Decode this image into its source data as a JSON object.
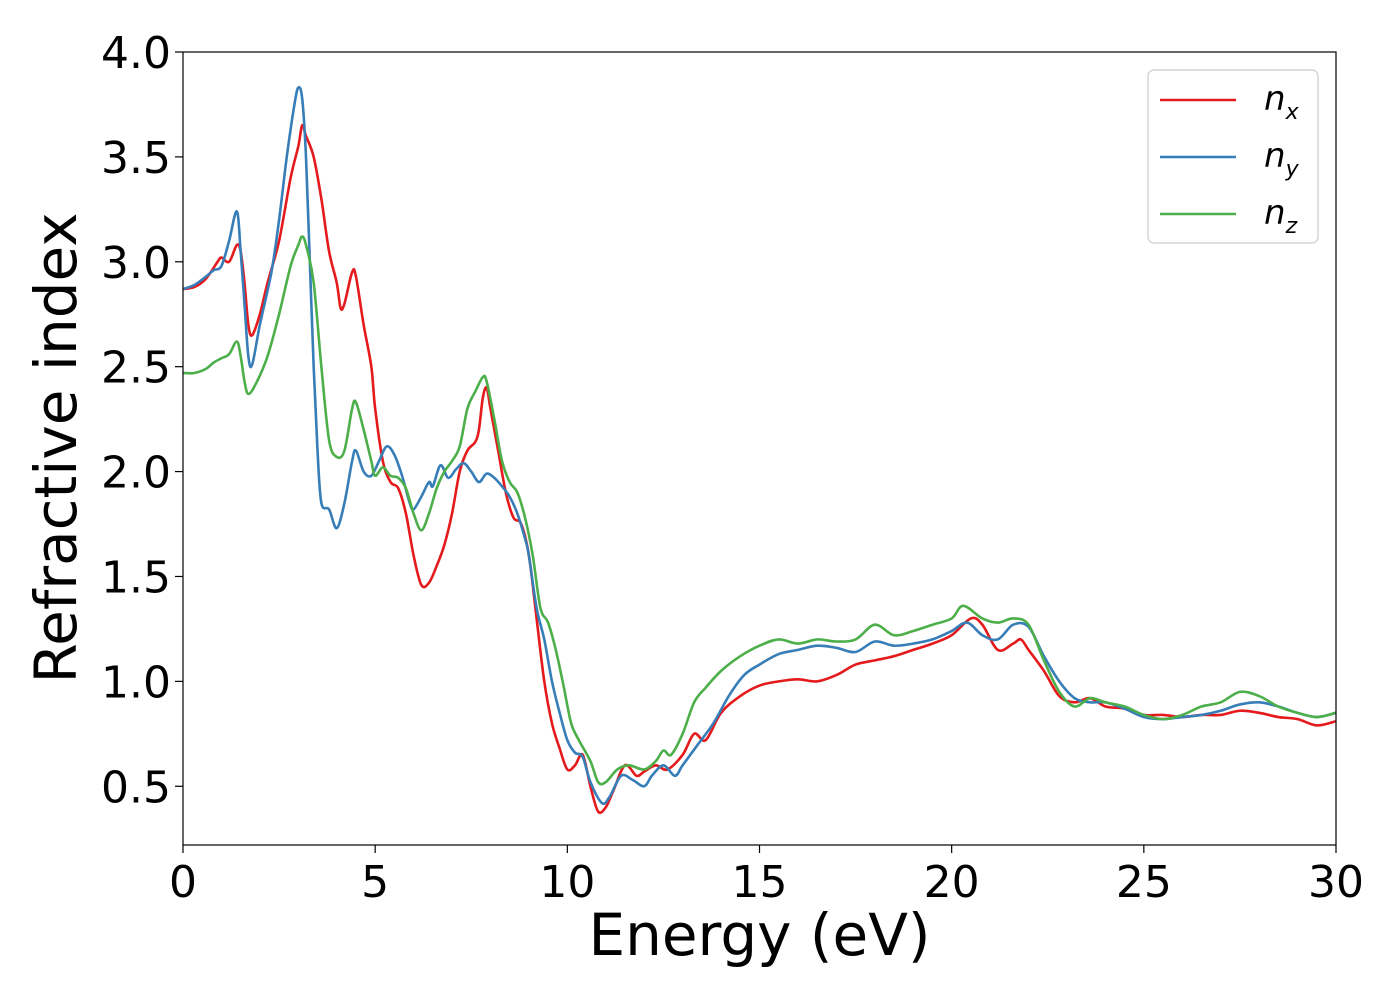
{
  "chart_data": {
    "type": "line",
    "title": "",
    "xlabel": "Energy (eV)",
    "ylabel": "Refractive index",
    "xlim": [
      0,
      30
    ],
    "ylim": [
      0.22,
      4.0
    ],
    "xticks": [
      0,
      5,
      10,
      15,
      20,
      25,
      30
    ],
    "xtick_labels": [
      "0",
      "5",
      "10",
      "15",
      "20",
      "25",
      "30"
    ],
    "yticks": [
      0.5,
      1.0,
      1.5,
      2.0,
      2.5,
      3.0,
      3.5,
      4.0
    ],
    "ytick_labels": [
      "0.5",
      "1.0",
      "1.5",
      "2.0",
      "2.5",
      "3.0",
      "3.5",
      "4.0"
    ],
    "grid": false,
    "legend_position": "top-right",
    "series": [
      {
        "name": "n_x",
        "legend_base": "n",
        "legend_sub": "x",
        "color": "#e41a1c",
        "points": [
          [
            0,
            2.87
          ],
          [
            0.3,
            2.88
          ],
          [
            0.6,
            2.92
          ],
          [
            0.9,
            3.0
          ],
          [
            1.0,
            3.02
          ],
          [
            1.2,
            3.0
          ],
          [
            1.4,
            3.08
          ],
          [
            1.5,
            3.05
          ],
          [
            1.6,
            2.9
          ],
          [
            1.7,
            2.7
          ],
          [
            1.8,
            2.65
          ],
          [
            2.0,
            2.75
          ],
          [
            2.2,
            2.9
          ],
          [
            2.5,
            3.1
          ],
          [
            2.8,
            3.4
          ],
          [
            3.0,
            3.55
          ],
          [
            3.1,
            3.65
          ],
          [
            3.2,
            3.6
          ],
          [
            3.4,
            3.5
          ],
          [
            3.6,
            3.3
          ],
          [
            3.8,
            3.05
          ],
          [
            4.0,
            2.9
          ],
          [
            4.1,
            2.78
          ],
          [
            4.2,
            2.8
          ],
          [
            4.4,
            2.95
          ],
          [
            4.5,
            2.93
          ],
          [
            4.7,
            2.7
          ],
          [
            4.9,
            2.5
          ],
          [
            5.0,
            2.3
          ],
          [
            5.2,
            2.05
          ],
          [
            5.4,
            1.95
          ],
          [
            5.6,
            1.92
          ],
          [
            5.8,
            1.8
          ],
          [
            6.0,
            1.6
          ],
          [
            6.2,
            1.46
          ],
          [
            6.4,
            1.47
          ],
          [
            6.6,
            1.55
          ],
          [
            6.8,
            1.65
          ],
          [
            7.0,
            1.8
          ],
          [
            7.2,
            2.0
          ],
          [
            7.4,
            2.1
          ],
          [
            7.6,
            2.14
          ],
          [
            7.7,
            2.2
          ],
          [
            7.8,
            2.35
          ],
          [
            7.9,
            2.4
          ],
          [
            8.0,
            2.3
          ],
          [
            8.2,
            2.1
          ],
          [
            8.4,
            1.9
          ],
          [
            8.6,
            1.78
          ],
          [
            8.8,
            1.75
          ],
          [
            9.0,
            1.6
          ],
          [
            9.2,
            1.3
          ],
          [
            9.4,
            1.0
          ],
          [
            9.6,
            0.8
          ],
          [
            9.8,
            0.68
          ],
          [
            10.0,
            0.58
          ],
          [
            10.2,
            0.6
          ],
          [
            10.4,
            0.65
          ],
          [
            10.6,
            0.5
          ],
          [
            10.8,
            0.38
          ],
          [
            11.0,
            0.4
          ],
          [
            11.2,
            0.48
          ],
          [
            11.5,
            0.6
          ],
          [
            11.8,
            0.55
          ],
          [
            12.0,
            0.57
          ],
          [
            12.3,
            0.6
          ],
          [
            12.6,
            0.58
          ],
          [
            13.0,
            0.65
          ],
          [
            13.3,
            0.75
          ],
          [
            13.6,
            0.72
          ],
          [
            14.0,
            0.85
          ],
          [
            14.5,
            0.93
          ],
          [
            15.0,
            0.98
          ],
          [
            15.5,
            1.0
          ],
          [
            16.0,
            1.01
          ],
          [
            16.5,
            1.0
          ],
          [
            17.0,
            1.03
          ],
          [
            17.5,
            1.08
          ],
          [
            18.0,
            1.1
          ],
          [
            18.5,
            1.12
          ],
          [
            19.0,
            1.15
          ],
          [
            19.5,
            1.18
          ],
          [
            20.0,
            1.22
          ],
          [
            20.5,
            1.3
          ],
          [
            20.8,
            1.27
          ],
          [
            21.2,
            1.15
          ],
          [
            21.6,
            1.18
          ],
          [
            21.8,
            1.2
          ],
          [
            22.0,
            1.15
          ],
          [
            22.4,
            1.05
          ],
          [
            22.8,
            0.93
          ],
          [
            23.2,
            0.9
          ],
          [
            23.6,
            0.92
          ],
          [
            24.0,
            0.88
          ],
          [
            24.5,
            0.87
          ],
          [
            25.0,
            0.84
          ],
          [
            25.5,
            0.84
          ],
          [
            26.0,
            0.83
          ],
          [
            26.5,
            0.84
          ],
          [
            27.0,
            0.84
          ],
          [
            27.5,
            0.86
          ],
          [
            28.0,
            0.85
          ],
          [
            28.5,
            0.83
          ],
          [
            29.0,
            0.82
          ],
          [
            29.5,
            0.79
          ],
          [
            30.0,
            0.81
          ]
        ]
      },
      {
        "name": "n_y",
        "legend_base": "n",
        "legend_sub": "y",
        "color": "#377eb8",
        "points": [
          [
            0,
            2.87
          ],
          [
            0.3,
            2.89
          ],
          [
            0.6,
            2.93
          ],
          [
            0.8,
            2.96
          ],
          [
            1.0,
            2.98
          ],
          [
            1.2,
            3.1
          ],
          [
            1.4,
            3.24
          ],
          [
            1.5,
            3.05
          ],
          [
            1.6,
            2.8
          ],
          [
            1.7,
            2.55
          ],
          [
            1.8,
            2.51
          ],
          [
            2.0,
            2.7
          ],
          [
            2.3,
            2.95
          ],
          [
            2.5,
            3.2
          ],
          [
            2.7,
            3.5
          ],
          [
            2.9,
            3.75
          ],
          [
            3.0,
            3.83
          ],
          [
            3.1,
            3.78
          ],
          [
            3.2,
            3.5
          ],
          [
            3.3,
            3.0
          ],
          [
            3.4,
            2.5
          ],
          [
            3.5,
            2.1
          ],
          [
            3.6,
            1.85
          ],
          [
            3.8,
            1.82
          ],
          [
            4.0,
            1.73
          ],
          [
            4.2,
            1.85
          ],
          [
            4.4,
            2.05
          ],
          [
            4.5,
            2.1
          ],
          [
            4.7,
            2.0
          ],
          [
            4.9,
            1.98
          ],
          [
            5.1,
            2.05
          ],
          [
            5.3,
            2.12
          ],
          [
            5.5,
            2.08
          ],
          [
            5.7,
            1.98
          ],
          [
            5.9,
            1.85
          ],
          [
            6.0,
            1.82
          ],
          [
            6.2,
            1.88
          ],
          [
            6.4,
            1.95
          ],
          [
            6.5,
            1.93
          ],
          [
            6.7,
            2.03
          ],
          [
            6.9,
            1.97
          ],
          [
            7.1,
            2.01
          ],
          [
            7.3,
            2.04
          ],
          [
            7.5,
            2.0
          ],
          [
            7.7,
            1.95
          ],
          [
            7.9,
            1.99
          ],
          [
            8.1,
            1.97
          ],
          [
            8.3,
            1.93
          ],
          [
            8.5,
            1.88
          ],
          [
            8.7,
            1.8
          ],
          [
            8.9,
            1.68
          ],
          [
            9.0,
            1.6
          ],
          [
            9.2,
            1.35
          ],
          [
            9.4,
            1.2
          ],
          [
            9.6,
            1.0
          ],
          [
            9.8,
            0.85
          ],
          [
            10.0,
            0.72
          ],
          [
            10.2,
            0.66
          ],
          [
            10.4,
            0.64
          ],
          [
            10.6,
            0.52
          ],
          [
            10.9,
            0.42
          ],
          [
            11.1,
            0.45
          ],
          [
            11.4,
            0.55
          ],
          [
            11.7,
            0.53
          ],
          [
            12.0,
            0.5
          ],
          [
            12.2,
            0.55
          ],
          [
            12.5,
            0.6
          ],
          [
            12.8,
            0.55
          ],
          [
            13.0,
            0.6
          ],
          [
            13.4,
            0.7
          ],
          [
            13.8,
            0.8
          ],
          [
            14.2,
            0.93
          ],
          [
            14.6,
            1.03
          ],
          [
            15.0,
            1.08
          ],
          [
            15.5,
            1.13
          ],
          [
            16.0,
            1.15
          ],
          [
            16.5,
            1.17
          ],
          [
            17.0,
            1.16
          ],
          [
            17.5,
            1.14
          ],
          [
            18.0,
            1.19
          ],
          [
            18.5,
            1.17
          ],
          [
            19.0,
            1.18
          ],
          [
            19.5,
            1.2
          ],
          [
            20.0,
            1.24
          ],
          [
            20.4,
            1.28
          ],
          [
            20.8,
            1.22
          ],
          [
            21.2,
            1.2
          ],
          [
            21.6,
            1.27
          ],
          [
            22.0,
            1.26
          ],
          [
            22.4,
            1.12
          ],
          [
            22.8,
            1.0
          ],
          [
            23.2,
            0.92
          ],
          [
            23.6,
            0.9
          ],
          [
            24.0,
            0.9
          ],
          [
            24.5,
            0.87
          ],
          [
            25.0,
            0.83
          ],
          [
            25.5,
            0.82
          ],
          [
            26.0,
            0.83
          ],
          [
            26.5,
            0.84
          ],
          [
            27.0,
            0.86
          ],
          [
            27.5,
            0.89
          ],
          [
            28.0,
            0.9
          ],
          [
            28.5,
            0.88
          ],
          [
            29.0,
            0.85
          ],
          [
            29.5,
            0.83
          ],
          [
            30.0,
            0.85
          ]
        ]
      },
      {
        "name": "n_z",
        "legend_base": "n",
        "legend_sub": "z",
        "color": "#4daf4a",
        "points": [
          [
            0,
            2.47
          ],
          [
            0.3,
            2.47
          ],
          [
            0.6,
            2.49
          ],
          [
            0.8,
            2.52
          ],
          [
            1.0,
            2.54
          ],
          [
            1.2,
            2.56
          ],
          [
            1.4,
            2.62
          ],
          [
            1.5,
            2.55
          ],
          [
            1.6,
            2.43
          ],
          [
            1.7,
            2.37
          ],
          [
            1.9,
            2.42
          ],
          [
            2.2,
            2.55
          ],
          [
            2.5,
            2.75
          ],
          [
            2.8,
            2.98
          ],
          [
            3.0,
            3.08
          ],
          [
            3.1,
            3.12
          ],
          [
            3.2,
            3.08
          ],
          [
            3.4,
            2.9
          ],
          [
            3.6,
            2.5
          ],
          [
            3.8,
            2.15
          ],
          [
            4.0,
            2.07
          ],
          [
            4.2,
            2.1
          ],
          [
            4.4,
            2.3
          ],
          [
            4.5,
            2.33
          ],
          [
            4.7,
            2.2
          ],
          [
            4.9,
            2.05
          ],
          [
            5.0,
            1.98
          ],
          [
            5.2,
            2.02
          ],
          [
            5.4,
            1.98
          ],
          [
            5.6,
            1.97
          ],
          [
            5.8,
            1.92
          ],
          [
            6.0,
            1.8
          ],
          [
            6.2,
            1.72
          ],
          [
            6.4,
            1.8
          ],
          [
            6.6,
            1.92
          ],
          [
            6.8,
            2.0
          ],
          [
            7.0,
            2.05
          ],
          [
            7.2,
            2.12
          ],
          [
            7.4,
            2.3
          ],
          [
            7.6,
            2.38
          ],
          [
            7.8,
            2.45
          ],
          [
            7.9,
            2.43
          ],
          [
            8.1,
            2.25
          ],
          [
            8.3,
            2.05
          ],
          [
            8.5,
            1.95
          ],
          [
            8.7,
            1.9
          ],
          [
            8.9,
            1.78
          ],
          [
            9.1,
            1.6
          ],
          [
            9.3,
            1.35
          ],
          [
            9.5,
            1.28
          ],
          [
            9.7,
            1.15
          ],
          [
            9.9,
            0.98
          ],
          [
            10.1,
            0.8
          ],
          [
            10.3,
            0.72
          ],
          [
            10.6,
            0.62
          ],
          [
            10.8,
            0.52
          ],
          [
            11.0,
            0.52
          ],
          [
            11.3,
            0.58
          ],
          [
            11.6,
            0.6
          ],
          [
            12.0,
            0.58
          ],
          [
            12.3,
            0.62
          ],
          [
            12.5,
            0.67
          ],
          [
            12.7,
            0.65
          ],
          [
            13.0,
            0.75
          ],
          [
            13.3,
            0.9
          ],
          [
            13.6,
            0.97
          ],
          [
            14.0,
            1.05
          ],
          [
            14.5,
            1.12
          ],
          [
            15.0,
            1.17
          ],
          [
            15.5,
            1.2
          ],
          [
            16.0,
            1.18
          ],
          [
            16.5,
            1.2
          ],
          [
            17.0,
            1.19
          ],
          [
            17.5,
            1.2
          ],
          [
            18.0,
            1.27
          ],
          [
            18.5,
            1.22
          ],
          [
            19.0,
            1.24
          ],
          [
            19.5,
            1.27
          ],
          [
            20.0,
            1.3
          ],
          [
            20.3,
            1.36
          ],
          [
            20.8,
            1.3
          ],
          [
            21.2,
            1.28
          ],
          [
            21.6,
            1.3
          ],
          [
            22.0,
            1.27
          ],
          [
            22.4,
            1.1
          ],
          [
            22.8,
            0.95
          ],
          [
            23.2,
            0.88
          ],
          [
            23.6,
            0.92
          ],
          [
            24.0,
            0.9
          ],
          [
            24.5,
            0.88
          ],
          [
            25.0,
            0.84
          ],
          [
            25.5,
            0.82
          ],
          [
            26.0,
            0.84
          ],
          [
            26.5,
            0.88
          ],
          [
            27.0,
            0.9
          ],
          [
            27.5,
            0.95
          ],
          [
            28.0,
            0.93
          ],
          [
            28.5,
            0.88
          ],
          [
            29.0,
            0.85
          ],
          [
            29.5,
            0.83
          ],
          [
            30.0,
            0.85
          ]
        ]
      }
    ]
  }
}
